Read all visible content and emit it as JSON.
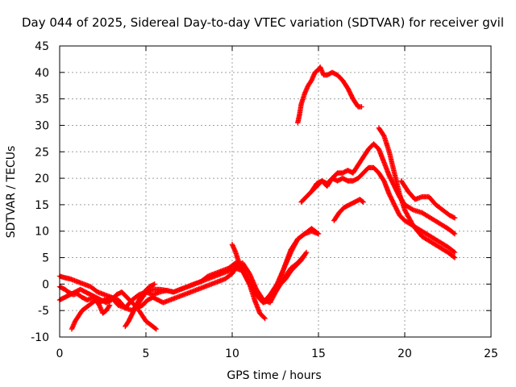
{
  "chart_data": {
    "type": "scatter",
    "title": "Day 044 of 2025, Sidereal Day-to-day VTEC variation (SDTVAR) for receiver gvil",
    "xlabel": "GPS time / hours",
    "ylabel": "SDTVAR / TECUs",
    "xlim": [
      0,
      25
    ],
    "ylim": [
      -10,
      45
    ],
    "xticks": [
      "0",
      "5",
      "10",
      "15",
      "20",
      "25"
    ],
    "yticks": [
      "-10",
      "-5",
      "0",
      "5",
      "10",
      "15",
      "20",
      "25",
      "30",
      "35",
      "40",
      "45"
    ],
    "grid": true,
    "marker": "+",
    "color": "#ff0000",
    "series": [
      {
        "x": [
          0,
          0.3,
          0.5,
          0.8,
          1.0,
          1.3,
          1.6,
          2.0,
          2.3,
          2.6,
          3.0,
          3.4,
          3.8,
          4.2,
          4.6,
          5.0,
          5.4,
          5.8,
          6.2,
          6.6,
          7.0,
          7.4,
          7.8,
          8.2,
          8.6,
          9.0,
          9.4,
          9.8,
          10.2,
          10.6,
          11.0,
          11.4,
          11.8,
          12.2,
          12.6,
          13.0,
          13.4,
          13.8,
          14.2
        ],
        "y": [
          -0.5,
          -1,
          -1.5,
          -2,
          -1.8,
          -2.5,
          -3,
          -2.5,
          -3.5,
          -3,
          -2.5,
          -4,
          -4.5,
          -3,
          -2,
          -1.5,
          -2,
          -1.5,
          -1.2,
          -1.5,
          -1,
          -0.5,
          0,
          0.5,
          1,
          1.5,
          2,
          2.5,
          3,
          2.5,
          0,
          -2,
          -3.5,
          -3,
          -1,
          1,
          3,
          4,
          5.5
        ]
      },
      {
        "x": [
          0,
          0.3,
          0.6,
          1.0,
          1.4,
          1.8,
          2.2,
          2.6,
          3.0,
          3.4,
          3.8,
          4.2,
          4.6,
          5.0,
          5.4,
          5.8,
          6.2,
          6.6,
          7.0,
          7.4,
          7.8,
          8.2,
          8.6,
          9.0,
          9.4,
          9.8,
          10.2,
          10.6,
          11.0,
          11.4,
          11.8,
          12.2,
          12.6,
          13.0,
          13.4,
          13.8,
          14.2,
          14.6,
          15.0
        ],
        "y": [
          1.5,
          1.2,
          1,
          0.5,
          0,
          -0.5,
          -1.5,
          -2,
          -2.5,
          -3,
          -4.5,
          -5,
          -3.5,
          -1.5,
          -1,
          -1,
          -1.2,
          -1.5,
          -1,
          -0.5,
          0,
          0.5,
          1.5,
          2,
          2.5,
          3,
          4,
          3,
          0.5,
          -2,
          -3.5,
          -2,
          0,
          3,
          6,
          8.5,
          9.5,
          10.5,
          9.5
        ]
      },
      {
        "x": [
          0,
          0.3,
          0.6,
          0.9,
          1.2,
          1.5,
          1.8,
          2.1,
          2.4,
          2.7,
          3.0,
          3.3,
          3.6,
          3.9,
          4.2,
          4.5,
          4.8,
          5.1,
          5.4,
          5.7,
          6.0,
          6.4,
          6.8,
          7.2,
          7.6,
          8.0,
          8.4,
          8.8,
          9.2,
          9.6,
          10.0,
          10.3,
          10.6,
          11.0,
          11.4,
          11.8,
          12.2,
          12.6,
          13.0,
          13.4,
          13.8,
          14.2,
          14.6,
          15.0
        ],
        "y": [
          -3,
          -2.5,
          -2,
          -1.5,
          -1,
          -1.5,
          -2,
          -2.5,
          -3,
          -3.5,
          -3,
          -2,
          -1.5,
          -2.5,
          -3.5,
          -4.5,
          -4,
          -3,
          -2.5,
          -3,
          -3.5,
          -3,
          -2.5,
          -2,
          -1.5,
          -1,
          -0.5,
          0,
          0.5,
          1,
          2,
          3.5,
          4,
          2,
          -1,
          -3,
          -3.5,
          -1,
          3,
          6.5,
          8.5,
          9.5,
          10,
          9.5
        ]
      },
      {
        "x": [
          0.7,
          0.9,
          1.1,
          1.3,
          1.5,
          1.7,
          1.9,
          2.1,
          2.3,
          2.5,
          2.7,
          2.9
        ],
        "y": [
          -8.5,
          -7,
          -6,
          -5,
          -4.5,
          -4,
          -3.5,
          -3,
          -4,
          -5.5,
          -5,
          -4
        ]
      },
      {
        "x": [
          3.8,
          4.0,
          4.3,
          4.6,
          4.9,
          5.2,
          5.5
        ],
        "y": [
          -8,
          -7,
          -5,
          -3,
          -1.5,
          -0.5,
          0
        ]
      },
      {
        "x": [
          4.6,
          4.8,
          5.0,
          5.2,
          5.4,
          5.6
        ],
        "y": [
          -5,
          -6,
          -7,
          -7.5,
          -8,
          -8.5
        ]
      },
      {
        "x": [
          10.0,
          10.2,
          10.4,
          10.7,
          11.0,
          11.3,
          11.6,
          11.9
        ],
        "y": [
          7.5,
          6,
          4,
          2,
          0,
          -3,
          -5.5,
          -6.5
        ]
      },
      {
        "x": [
          12.5,
          12.8,
          13.1,
          13.4,
          13.7,
          14.0,
          14.3
        ],
        "y": [
          -1.5,
          0,
          1,
          2.5,
          3.5,
          4.5,
          6
        ]
      },
      {
        "x": [
          13.8,
          13.9,
          14.0,
          14.2,
          14.4,
          14.6,
          14.8,
          15.0,
          15.1,
          15.3,
          15.5,
          15.8,
          16.1,
          16.4,
          16.7,
          17.0,
          17.3,
          17.5
        ],
        "y": [
          30.5,
          32,
          34,
          36,
          37.5,
          38.5,
          40,
          40.5,
          41,
          39.5,
          39.5,
          40,
          39.5,
          38.5,
          37,
          35,
          33.5,
          33.5
        ]
      },
      {
        "x": [
          14.0,
          14.3,
          14.6,
          14.9,
          15.2,
          15.5,
          15.8,
          16.1,
          16.4,
          16.7,
          17.0,
          17.3,
          17.6,
          17.9,
          18.2,
          18.5,
          18.8,
          19.1,
          19.4,
          19.7,
          20.0,
          20.5,
          21.0,
          21.5,
          22.0,
          22.5,
          22.9
        ],
        "y": [
          15.5,
          16.5,
          17.5,
          18.5,
          19.5,
          19,
          20,
          19.5,
          20,
          19.5,
          19.5,
          20,
          21,
          22,
          22,
          21,
          19.5,
          17,
          15,
          13,
          12,
          11,
          10,
          9,
          8,
          7,
          6
        ]
      },
      {
        "x": [
          14.6,
          14.9,
          15.2,
          15.5,
          15.8,
          16.1,
          16.4,
          16.7,
          17.0,
          17.3,
          17.6,
          17.9,
          18.2,
          18.5,
          18.8,
          19.1,
          19.4,
          19.7,
          20.0,
          20.5,
          21.0,
          21.5,
          22.0,
          22.5,
          22.9
        ],
        "y": [
          17.5,
          19,
          19.5,
          18.5,
          20,
          21,
          21,
          21.5,
          21,
          22.5,
          24,
          25.5,
          26.5,
          25.5,
          23,
          20.5,
          18.5,
          16.5,
          15,
          14,
          13.5,
          12.5,
          11.5,
          10.5,
          9.5
        ]
      },
      {
        "x": [
          15.9,
          16.2,
          16.5,
          16.8,
          17.1,
          17.4,
          17.6
        ],
        "y": [
          12,
          13.5,
          14.5,
          15,
          15.5,
          16,
          15.5
        ]
      },
      {
        "x": [
          18.5,
          18.8,
          19.1,
          19.4,
          19.7,
          20.0,
          20.5,
          21.0,
          21.5,
          22.0,
          22.5,
          22.9
        ],
        "y": [
          29.5,
          28,
          25,
          21,
          17,
          14,
          11,
          9,
          8,
          7,
          6,
          5
        ]
      },
      {
        "x": [
          19.8,
          20.2,
          20.6,
          21.0,
          21.4,
          21.8,
          22.2,
          22.6,
          22.9
        ],
        "y": [
          19.5,
          17.5,
          16,
          16.5,
          16.5,
          15,
          14,
          13,
          12.5
        ]
      }
    ]
  }
}
